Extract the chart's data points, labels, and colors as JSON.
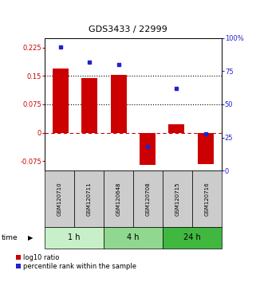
{
  "title": "GDS3433 / 22999",
  "samples": [
    "GSM120710",
    "GSM120711",
    "GSM120648",
    "GSM120708",
    "GSM120715",
    "GSM120716"
  ],
  "log10_ratio": [
    0.17,
    0.145,
    0.152,
    -0.085,
    0.022,
    -0.082
  ],
  "percentile_rank": [
    93,
    82,
    80,
    18,
    62,
    28
  ],
  "groups": [
    {
      "label": "1 h",
      "color": "#c8f0c8",
      "start": 0,
      "end": 2
    },
    {
      "label": "4 h",
      "color": "#90d890",
      "start": 2,
      "end": 4
    },
    {
      "label": "24 h",
      "color": "#40b840",
      "start": 4,
      "end": 6
    }
  ],
  "bar_color": "#cc0000",
  "dot_color": "#2222cc",
  "ylim_left": [
    -0.1,
    0.25
  ],
  "ylim_right": [
    0,
    100
  ],
  "yticks_left": [
    -0.075,
    0,
    0.075,
    0.15,
    0.225
  ],
  "yticks_right": [
    0,
    25,
    50,
    75,
    100
  ],
  "ytick_labels_left": [
    "-0.075",
    "0",
    "0.075",
    "0.15",
    "0.225"
  ],
  "ytick_labels_right": [
    "0",
    "25",
    "50",
    "75",
    "100%"
  ],
  "hlines_dotted": [
    0.075,
    0.15
  ],
  "hline_dashed": 0.0,
  "bar_width": 0.55,
  "legend_red": "log10 ratio",
  "legend_blue": "percentile rank within the sample",
  "sample_box_color": "#cccccc",
  "title_fontsize": 8,
  "axis_fontsize": 6,
  "sample_fontsize": 5,
  "group_fontsize": 7,
  "legend_fontsize": 6
}
